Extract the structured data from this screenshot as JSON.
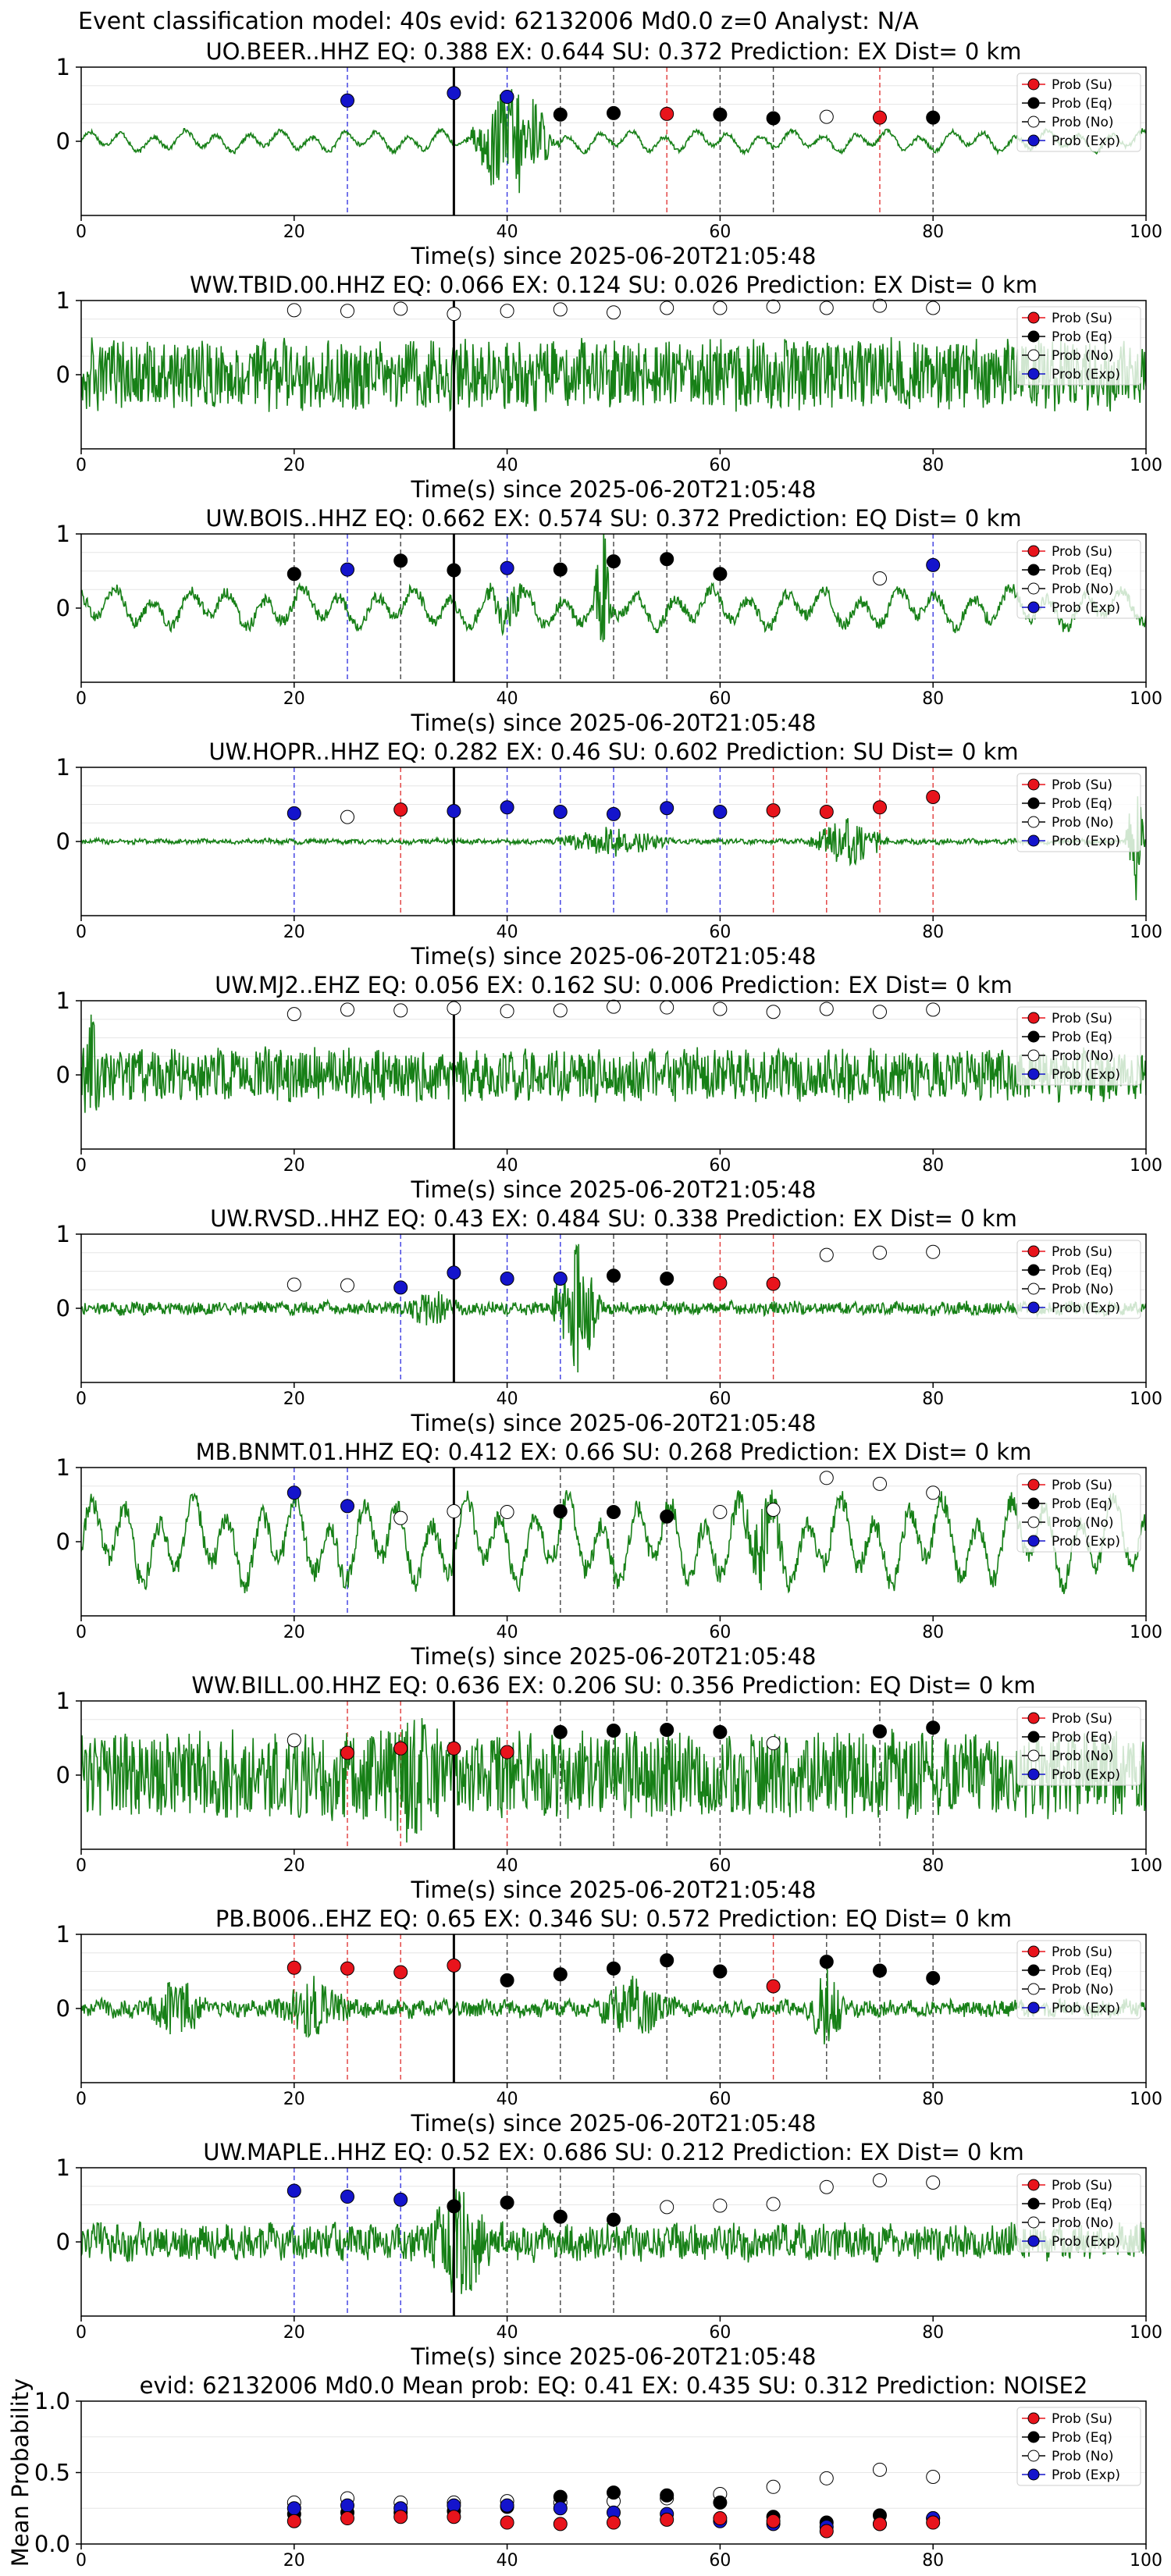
{
  "suptitle": "Event classification model: 40s evid: 62132006 Md0.0 z=0 Analyst: N/A",
  "colors": {
    "su": "#e8141c",
    "eq": "#000000",
    "no": "#ffffff",
    "exp": "#1414cc",
    "waveform": "#178017",
    "grid": "#e6e6e6"
  },
  "legend_labels": [
    "Prob (Su)",
    "Prob (Eq)",
    "Prob (No)",
    "Prob (Exp)"
  ],
  "legend_placement": "top-right",
  "chart_data": [
    {
      "type": "line",
      "station": "UO.BEER..HHZ",
      "title": "UO.BEER..HHZ   EQ: 0.388  EX: 0.644  SU: 0.372   Prediction: EX    Dist= 0 km",
      "xlabel": "Time(s) since 2025-06-20T21:05:48",
      "xlim": [
        0,
        100
      ],
      "ylim": [
        -1,
        1
      ],
      "xticks": [
        "0",
        "20",
        "40",
        "60",
        "80",
        "100"
      ],
      "yticks": [
        "1",
        "0"
      ],
      "marker_line_x": 35,
      "waveform": "low-frequency oscillation with burst near 35-45 s",
      "points": [
        {
          "t": 25,
          "c": "exp",
          "p": 0.55
        },
        {
          "t": 35,
          "c": "exp",
          "p": 0.65
        },
        {
          "t": 40,
          "c": "exp",
          "p": 0.6
        },
        {
          "t": 45,
          "c": "eq",
          "p": 0.36
        },
        {
          "t": 50,
          "c": "eq",
          "p": 0.38
        },
        {
          "t": 55,
          "c": "su",
          "p": 0.37
        },
        {
          "t": 60,
          "c": "eq",
          "p": 0.36
        },
        {
          "t": 65,
          "c": "eq",
          "p": 0.31
        },
        {
          "t": 70,
          "c": "no",
          "p": 0.33
        },
        {
          "t": 75,
          "c": "su",
          "p": 0.32
        },
        {
          "t": 80,
          "c": "eq",
          "p": 0.32
        }
      ]
    },
    {
      "type": "line",
      "station": "WW.TBID.00.HHZ",
      "title": "WW.TBID.00.HHZ   EQ: 0.066  EX: 0.124  SU: 0.026   Prediction: EX    Dist= 0 km",
      "xlabel": "Time(s) since 2025-06-20T21:05:48",
      "xlim": [
        0,
        100
      ],
      "ylim": [
        -1,
        1
      ],
      "xticks": [
        "0",
        "20",
        "40",
        "60",
        "80",
        "100"
      ],
      "yticks": [
        "1",
        "0"
      ],
      "marker_line_x": 35,
      "waveform": "broadband noise throughout",
      "points": [
        {
          "t": 20,
          "c": "no",
          "p": 0.87
        },
        {
          "t": 25,
          "c": "no",
          "p": 0.86
        },
        {
          "t": 30,
          "c": "no",
          "p": 0.89
        },
        {
          "t": 35,
          "c": "no",
          "p": 0.82
        },
        {
          "t": 40,
          "c": "no",
          "p": 0.86
        },
        {
          "t": 45,
          "c": "no",
          "p": 0.88
        },
        {
          "t": 50,
          "c": "no",
          "p": 0.84
        },
        {
          "t": 55,
          "c": "no",
          "p": 0.9
        },
        {
          "t": 60,
          "c": "no",
          "p": 0.9
        },
        {
          "t": 65,
          "c": "no",
          "p": 0.92
        },
        {
          "t": 70,
          "c": "no",
          "p": 0.9
        },
        {
          "t": 75,
          "c": "no",
          "p": 0.93
        },
        {
          "t": 80,
          "c": "no",
          "p": 0.9
        }
      ]
    },
    {
      "type": "line",
      "station": "UW.BOIS..HHZ",
      "title": "UW.BOIS..HHZ   EQ: 0.662  EX: 0.574  SU: 0.372   Prediction: EQ    Dist= 0 km",
      "xlabel": "Time(s) since 2025-06-20T21:05:48",
      "xlim": [
        0,
        100
      ],
      "ylim": [
        -1,
        1
      ],
      "xticks": [
        "0",
        "20",
        "40",
        "60",
        "80",
        "100"
      ],
      "yticks": [
        "1",
        "0"
      ],
      "marker_line_x": 35,
      "waveform": "medium-frequency oscillation with spike near 49 s",
      "points": [
        {
          "t": 20,
          "c": "eq",
          "p": 0.46
        },
        {
          "t": 25,
          "c": "exp",
          "p": 0.52
        },
        {
          "t": 30,
          "c": "eq",
          "p": 0.64
        },
        {
          "t": 35,
          "c": "eq",
          "p": 0.51
        },
        {
          "t": 40,
          "c": "exp",
          "p": 0.54
        },
        {
          "t": 45,
          "c": "eq",
          "p": 0.52
        },
        {
          "t": 50,
          "c": "eq",
          "p": 0.63
        },
        {
          "t": 55,
          "c": "eq",
          "p": 0.66
        },
        {
          "t": 60,
          "c": "eq",
          "p": 0.46
        },
        {
          "t": 75,
          "c": "no",
          "p": 0.4
        },
        {
          "t": 80,
          "c": "exp",
          "p": 0.58
        }
      ]
    },
    {
      "type": "line",
      "station": "UW.HOPR..HHZ",
      "title": "UW.HOPR..HHZ   EQ: 0.282  EX: 0.46  SU: 0.602   Prediction: SU    Dist= 0 km",
      "xlabel": "Time(s) since 2025-06-20T21:05:48",
      "xlim": [
        0,
        100
      ],
      "ylim": [
        -1,
        1
      ],
      "xticks": [
        "0",
        "20",
        "40",
        "60",
        "80",
        "100"
      ],
      "yticks": [
        "1",
        "0"
      ],
      "marker_line_x": 35,
      "waveform": "quiet trace with energy near 70-75 s and drop at end",
      "points": [
        {
          "t": 20,
          "c": "exp",
          "p": 0.38
        },
        {
          "t": 25,
          "c": "no",
          "p": 0.33
        },
        {
          "t": 30,
          "c": "su",
          "p": 0.43
        },
        {
          "t": 35,
          "c": "exp",
          "p": 0.41
        },
        {
          "t": 40,
          "c": "exp",
          "p": 0.46
        },
        {
          "t": 45,
          "c": "exp",
          "p": 0.4
        },
        {
          "t": 50,
          "c": "exp",
          "p": 0.37
        },
        {
          "t": 55,
          "c": "exp",
          "p": 0.45
        },
        {
          "t": 60,
          "c": "exp",
          "p": 0.4
        },
        {
          "t": 65,
          "c": "su",
          "p": 0.42
        },
        {
          "t": 70,
          "c": "su",
          "p": 0.4
        },
        {
          "t": 75,
          "c": "su",
          "p": 0.46
        },
        {
          "t": 80,
          "c": "su",
          "p": 0.6
        }
      ]
    },
    {
      "type": "line",
      "station": "UW.MJ2..EHZ",
      "title": "UW.MJ2..EHZ   EQ: 0.056  EX: 0.162  SU: 0.006   Prediction: EX    Dist= 0 km",
      "xlabel": "Time(s) since 2025-06-20T21:05:48",
      "xlim": [
        0,
        100
      ],
      "ylim": [
        -1,
        1
      ],
      "xticks": [
        "0",
        "20",
        "40",
        "60",
        "80",
        "100"
      ],
      "yticks": [
        "1",
        "0"
      ],
      "marker_line_x": 35,
      "waveform": "broadband noise throughout",
      "points": [
        {
          "t": 20,
          "c": "no",
          "p": 0.82
        },
        {
          "t": 25,
          "c": "no",
          "p": 0.88
        },
        {
          "t": 30,
          "c": "no",
          "p": 0.87
        },
        {
          "t": 35,
          "c": "no",
          "p": 0.9
        },
        {
          "t": 40,
          "c": "no",
          "p": 0.86
        },
        {
          "t": 45,
          "c": "no",
          "p": 0.87
        },
        {
          "t": 50,
          "c": "no",
          "p": 0.92
        },
        {
          "t": 55,
          "c": "no",
          "p": 0.91
        },
        {
          "t": 60,
          "c": "no",
          "p": 0.89
        },
        {
          "t": 65,
          "c": "no",
          "p": 0.85
        },
        {
          "t": 70,
          "c": "no",
          "p": 0.89
        },
        {
          "t": 75,
          "c": "no",
          "p": 0.85
        },
        {
          "t": 80,
          "c": "no",
          "p": 0.88
        }
      ]
    },
    {
      "type": "line",
      "station": "UW.RVSD..HHZ",
      "title": "UW.RVSD..HHZ   EQ: 0.43  EX: 0.484  SU: 0.338   Prediction: EX    Dist= 0 km",
      "xlabel": "Time(s) since 2025-06-20T21:05:48",
      "xlim": [
        0,
        100
      ],
      "ylim": [
        -1,
        1
      ],
      "xticks": [
        "0",
        "20",
        "40",
        "60",
        "80",
        "100"
      ],
      "yticks": [
        "1",
        "0"
      ],
      "marker_line_x": 35,
      "waveform": "quiet trace with large burst near 47 s",
      "points": [
        {
          "t": 20,
          "c": "no",
          "p": 0.32
        },
        {
          "t": 25,
          "c": "no",
          "p": 0.31
        },
        {
          "t": 30,
          "c": "exp",
          "p": 0.28
        },
        {
          "t": 35,
          "c": "exp",
          "p": 0.48
        },
        {
          "t": 40,
          "c": "exp",
          "p": 0.4
        },
        {
          "t": 45,
          "c": "exp",
          "p": 0.4
        },
        {
          "t": 50,
          "c": "eq",
          "p": 0.44
        },
        {
          "t": 55,
          "c": "eq",
          "p": 0.4
        },
        {
          "t": 60,
          "c": "su",
          "p": 0.34
        },
        {
          "t": 65,
          "c": "su",
          "p": 0.33
        },
        {
          "t": 70,
          "c": "no",
          "p": 0.72
        },
        {
          "t": 75,
          "c": "no",
          "p": 0.75
        },
        {
          "t": 80,
          "c": "no",
          "p": 0.76
        }
      ]
    },
    {
      "type": "line",
      "station": "MB.BNMT.01.HHZ",
      "title": "MB.BNMT.01.HHZ   EQ: 0.412  EX: 0.66  SU: 0.268   Prediction: EX    Dist= 0 km",
      "xlabel": "Time(s) since 2025-06-20T21:05:48",
      "xlim": [
        0,
        100
      ],
      "ylim": [
        -1,
        1
      ],
      "xticks": [
        "0",
        "20",
        "40",
        "60",
        "80",
        "100"
      ],
      "yticks": [
        "1",
        "0"
      ],
      "marker_line_x": 35,
      "waveform": "large low-frequency oscillation throughout",
      "points": [
        {
          "t": 20,
          "c": "exp",
          "p": 0.66
        },
        {
          "t": 25,
          "c": "exp",
          "p": 0.48
        },
        {
          "t": 30,
          "c": "no",
          "p": 0.32
        },
        {
          "t": 35,
          "c": "no",
          "p": 0.41
        },
        {
          "t": 40,
          "c": "no",
          "p": 0.4
        },
        {
          "t": 45,
          "c": "eq",
          "p": 0.41
        },
        {
          "t": 50,
          "c": "eq",
          "p": 0.4
        },
        {
          "t": 55,
          "c": "eq",
          "p": 0.34
        },
        {
          "t": 60,
          "c": "no",
          "p": 0.4
        },
        {
          "t": 65,
          "c": "no",
          "p": 0.43
        },
        {
          "t": 70,
          "c": "no",
          "p": 0.86
        },
        {
          "t": 75,
          "c": "no",
          "p": 0.78
        },
        {
          "t": 80,
          "c": "no",
          "p": 0.66
        }
      ]
    },
    {
      "type": "line",
      "station": "WW.BILL.00.HHZ",
      "title": "WW.BILL.00.HHZ   EQ: 0.636  EX: 0.206  SU: 0.356   Prediction: EQ    Dist= 0 km",
      "xlabel": "Time(s) since 2025-06-20T21:05:48",
      "xlim": [
        0,
        100
      ],
      "ylim": [
        -1,
        1
      ],
      "xticks": [
        "0",
        "20",
        "40",
        "60",
        "80",
        "100"
      ],
      "yticks": [
        "1",
        "0"
      ],
      "marker_line_x": 35,
      "waveform": "high-amplitude broadband noise throughout",
      "points": [
        {
          "t": 20,
          "c": "no",
          "p": 0.47
        },
        {
          "t": 25,
          "c": "su",
          "p": 0.3
        },
        {
          "t": 30,
          "c": "su",
          "p": 0.36
        },
        {
          "t": 35,
          "c": "su",
          "p": 0.36
        },
        {
          "t": 40,
          "c": "su",
          "p": 0.31
        },
        {
          "t": 45,
          "c": "eq",
          "p": 0.58
        },
        {
          "t": 50,
          "c": "eq",
          "p": 0.6
        },
        {
          "t": 55,
          "c": "eq",
          "p": 0.61
        },
        {
          "t": 60,
          "c": "eq",
          "p": 0.58
        },
        {
          "t": 65,
          "c": "no",
          "p": 0.43
        },
        {
          "t": 75,
          "c": "eq",
          "p": 0.59
        },
        {
          "t": 80,
          "c": "eq",
          "p": 0.64
        }
      ]
    },
    {
      "type": "line",
      "station": "PB.B006..EHZ",
      "title": "PB.B006..EHZ   EQ: 0.65  EX: 0.346  SU: 0.572   Prediction: EQ    Dist= 0 km",
      "xlabel": "Time(s) since 2025-06-20T21:05:48",
      "xlim": [
        0,
        100
      ],
      "ylim": [
        -1,
        1
      ],
      "xticks": [
        "0",
        "20",
        "40",
        "60",
        "80",
        "100"
      ],
      "yticks": [
        "1",
        "0"
      ],
      "marker_line_x": 35,
      "waveform": "moderate noise with bursts near 20 s, 50 s and 70 s",
      "points": [
        {
          "t": 20,
          "c": "su",
          "p": 0.55
        },
        {
          "t": 25,
          "c": "su",
          "p": 0.54
        },
        {
          "t": 30,
          "c": "su",
          "p": 0.49
        },
        {
          "t": 35,
          "c": "su",
          "p": 0.58
        },
        {
          "t": 40,
          "c": "eq",
          "p": 0.38
        },
        {
          "t": 45,
          "c": "eq",
          "p": 0.46
        },
        {
          "t": 50,
          "c": "eq",
          "p": 0.54
        },
        {
          "t": 55,
          "c": "eq",
          "p": 0.65
        },
        {
          "t": 60,
          "c": "eq",
          "p": 0.5
        },
        {
          "t": 65,
          "c": "su",
          "p": 0.3
        },
        {
          "t": 70,
          "c": "eq",
          "p": 0.63
        },
        {
          "t": 75,
          "c": "eq",
          "p": 0.51
        },
        {
          "t": 80,
          "c": "eq",
          "p": 0.41
        }
      ]
    },
    {
      "type": "line",
      "station": "UW.MAPLE..HHZ",
      "title": "UW.MAPLE..HHZ   EQ: 0.52  EX: 0.686  SU: 0.212   Prediction: EX    Dist= 0 km",
      "xlabel": "Time(s) since 2025-06-20T21:05:48",
      "xlim": [
        0,
        100
      ],
      "ylim": [
        -1,
        1
      ],
      "xticks": [
        "0",
        "20",
        "40",
        "60",
        "80",
        "100"
      ],
      "yticks": [
        "1",
        "0"
      ],
      "marker_line_x": 35,
      "waveform": "moderate noise with burst near 33-38 s",
      "points": [
        {
          "t": 20,
          "c": "exp",
          "p": 0.69
        },
        {
          "t": 25,
          "c": "exp",
          "p": 0.61
        },
        {
          "t": 30,
          "c": "exp",
          "p": 0.57
        },
        {
          "t": 35,
          "c": "eq",
          "p": 0.48
        },
        {
          "t": 40,
          "c": "eq",
          "p": 0.53
        },
        {
          "t": 45,
          "c": "eq",
          "p": 0.34
        },
        {
          "t": 50,
          "c": "eq",
          "p": 0.3
        },
        {
          "t": 55,
          "c": "no",
          "p": 0.47
        },
        {
          "t": 60,
          "c": "no",
          "p": 0.49
        },
        {
          "t": 65,
          "c": "no",
          "p": 0.51
        },
        {
          "t": 70,
          "c": "no",
          "p": 0.74
        },
        {
          "t": 75,
          "c": "no",
          "p": 0.83
        },
        {
          "t": 80,
          "c": "no",
          "p": 0.8
        }
      ]
    },
    {
      "type": "scatter",
      "title": "evid: 62132006  Md0.0   Mean prob:   EQ: 0.41  EX: 0.435  SU: 0.312   Prediction: NOISE2",
      "xlabel": "",
      "ylabel": "Mean Probability",
      "xlim": [
        0,
        100
      ],
      "ylim": [
        0,
        1
      ],
      "xticks": [
        "0",
        "20",
        "40",
        "60",
        "80",
        "100"
      ],
      "yticks": [
        "0.0",
        "0.5",
        "1.0"
      ],
      "x": [
        20,
        25,
        30,
        35,
        40,
        45,
        50,
        55,
        60,
        65,
        70,
        75,
        80
      ],
      "series": [
        {
          "name": "Prob (No)",
          "key": "no",
          "values": [
            0.29,
            0.32,
            0.29,
            0.29,
            0.3,
            0.29,
            0.3,
            0.32,
            0.35,
            0.4,
            0.46,
            0.52,
            0.47
          ]
        },
        {
          "name": "Prob (Eq)",
          "key": "eq",
          "values": [
            0.21,
            0.22,
            0.22,
            0.23,
            0.26,
            0.33,
            0.36,
            0.34,
            0.29,
            0.19,
            0.15,
            0.2,
            0.18
          ]
        },
        {
          "name": "Prob (Exp)",
          "key": "exp",
          "values": [
            0.25,
            0.27,
            0.25,
            0.27,
            0.27,
            0.25,
            0.22,
            0.21,
            0.16,
            0.14,
            0.12,
            0.14,
            0.18
          ]
        },
        {
          "name": "Prob (Su)",
          "key": "su",
          "values": [
            0.16,
            0.18,
            0.19,
            0.19,
            0.15,
            0.14,
            0.15,
            0.17,
            0.18,
            0.16,
            0.09,
            0.14,
            0.15
          ]
        }
      ]
    }
  ]
}
